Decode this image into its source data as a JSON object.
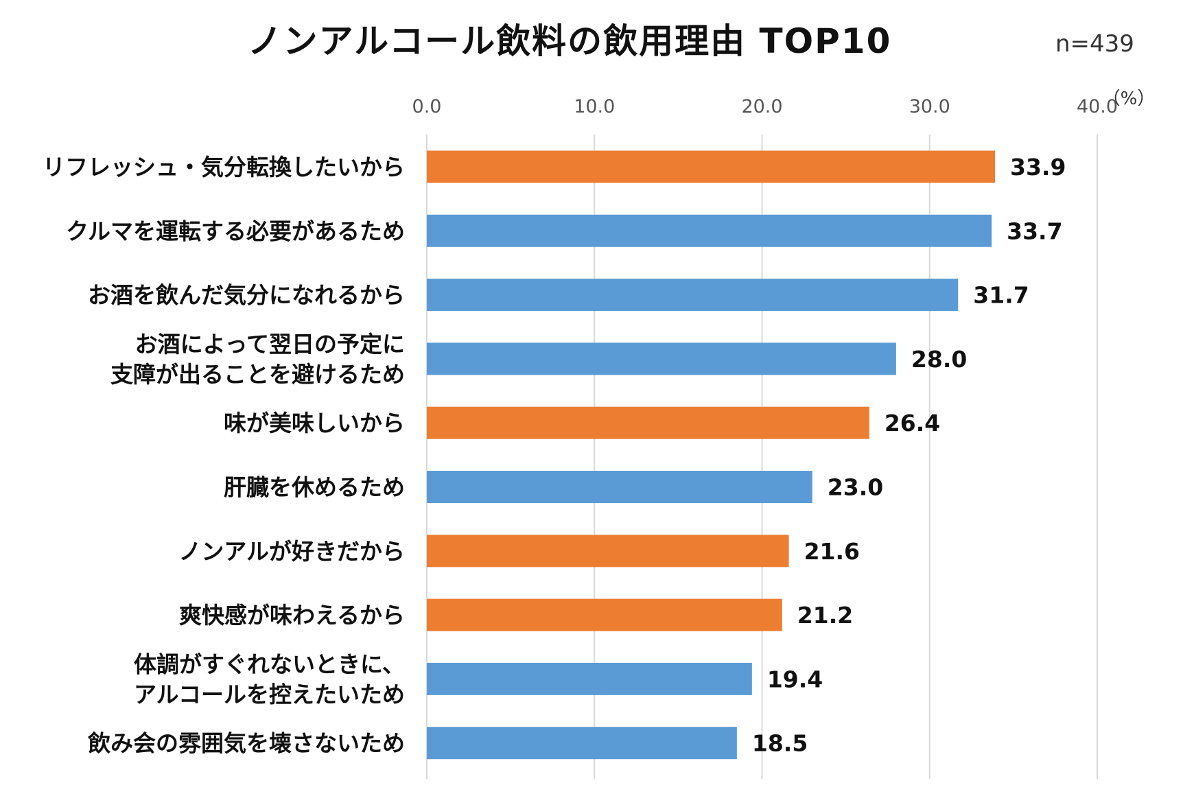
{
  "chart_data": {
    "type": "bar",
    "orientation": "horizontal",
    "title": "ノンアルコール飲料の飲用理由 TOP10",
    "sample_size": "n=439",
    "unit": "（%）",
    "xlim": [
      0,
      40
    ],
    "ticks": [
      "0.0",
      "10.0",
      "20.0",
      "30.0",
      "40.0"
    ],
    "tick_values": [
      0,
      10,
      20,
      30,
      40
    ],
    "colors": {
      "orange": "#ED7D31",
      "blue": "#5B9BD5",
      "grid": "#D9D9D9"
    },
    "categories": [
      [
        "リフレッシュ・気分転換したいから"
      ],
      [
        "クルマを運転する必要があるため"
      ],
      [
        "お酒を飲んだ気分になれるから"
      ],
      [
        "お酒によって翌日の予定に",
        "支障が出ることを避けるため"
      ],
      [
        "味が美味しいから"
      ],
      [
        "肝臓を休めるため"
      ],
      [
        "ノンアルが好きだから"
      ],
      [
        "爽快感が味わえるから"
      ],
      [
        "体調がすぐれないときに、",
        "アルコールを控えたいため"
      ],
      [
        "飲み会の雰囲気を壊さないため"
      ]
    ],
    "values": [
      33.9,
      33.7,
      31.7,
      28.0,
      26.4,
      23.0,
      21.6,
      21.2,
      19.4,
      18.5
    ],
    "value_labels": [
      "33.9",
      "33.7",
      "31.7",
      "28.0",
      "26.4",
      "23.0",
      "21.6",
      "21.2",
      "19.4",
      "18.5"
    ],
    "bar_colors": [
      "orange",
      "blue",
      "blue",
      "blue",
      "orange",
      "blue",
      "orange",
      "orange",
      "blue",
      "blue"
    ]
  }
}
